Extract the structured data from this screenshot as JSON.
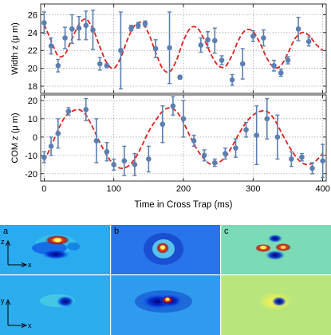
{
  "chart_data": [
    {
      "type": "scatter",
      "ylabel": "Width z (μ m)",
      "xlim": [
        -5,
        405
      ],
      "ylim": [
        17.2,
        27.2
      ],
      "yticks": [
        18,
        20,
        22,
        24,
        26
      ],
      "xticks": [
        0,
        100,
        200,
        300,
        400
      ],
      "grid": true,
      "series": [
        {
          "kind": "points",
          "color": "#5b7fb1",
          "points": [
            {
              "x": 0,
              "y": 25.1,
              "err": 1.2
            },
            {
              "x": 10,
              "y": 22.5,
              "err": 0.9
            },
            {
              "x": 20,
              "y": 20.3,
              "err": 0.7
            },
            {
              "x": 30,
              "y": 23.4,
              "err": 1.2
            },
            {
              "x": 40,
              "y": 24.4,
              "err": 1.6
            },
            {
              "x": 50,
              "y": 24.5,
              "err": 1.3
            },
            {
              "x": 60,
              "y": 24.8,
              "err": 1.6
            },
            {
              "x": 70,
              "y": 24.3,
              "err": 2.2
            },
            {
              "x": 80,
              "y": 20.5,
              "err": 0.7
            },
            {
              "x": 90,
              "y": 20.3,
              "err": 0.2
            },
            {
              "x": 110,
              "y": 22.0,
              "err": 4.3
            },
            {
              "x": 125,
              "y": 24.5,
              "err": 0.3
            },
            {
              "x": 135,
              "y": 24.8,
              "err": 0.3
            },
            {
              "x": 145,
              "y": 25.0,
              "err": 0.3
            },
            {
              "x": 160,
              "y": 22.2,
              "err": 1.0
            },
            {
              "x": 180,
              "y": 22.3,
              "err": 4.0
            },
            {
              "x": 195,
              "y": 19.0,
              "err": 0.2
            },
            {
              "x": 225,
              "y": 22.6,
              "err": 0.8
            },
            {
              "x": 235,
              "y": 23.2,
              "err": 0.9
            },
            {
              "x": 245,
              "y": 23.1,
              "err": 1.4
            },
            {
              "x": 255,
              "y": 20.9,
              "err": 0.5
            },
            {
              "x": 270,
              "y": 18.7,
              "err": 0.6
            },
            {
              "x": 285,
              "y": 20.5,
              "err": 1.7
            },
            {
              "x": 300,
              "y": 23.6,
              "err": 0.6
            },
            {
              "x": 315,
              "y": 23.4,
              "err": 0.9
            },
            {
              "x": 330,
              "y": 20.3,
              "err": 0.6
            },
            {
              "x": 340,
              "y": 19.5,
              "err": 0.4
            },
            {
              "x": 350,
              "y": 20.9,
              "err": 0.4
            },
            {
              "x": 365,
              "y": 24.4,
              "err": 1.3
            },
            {
              "x": 380,
              "y": 23.0,
              "err": 0.5
            }
          ]
        },
        {
          "kind": "fit",
          "color": "#e0201b",
          "dashed": true,
          "x": [
            0,
            10,
            20,
            30,
            40,
            50,
            60,
            70,
            80,
            90,
            100,
            110,
            120,
            130,
            140,
            150,
            160,
            170,
            180,
            190,
            200,
            210,
            220,
            230,
            240,
            250,
            260,
            270,
            280,
            290,
            300,
            310,
            320,
            330,
            340,
            350,
            360,
            370,
            380,
            390,
            400
          ],
          "y": [
            24.9,
            23.1,
            21.4,
            21.6,
            23.3,
            24.9,
            25.5,
            24.4,
            22.4,
            20.6,
            20.0,
            21.2,
            23.3,
            24.8,
            25.1,
            23.9,
            21.8,
            20.0,
            19.6,
            20.9,
            23.1,
            24.5,
            24.5,
            23.2,
            21.5,
            20.3,
            20.2,
            21.5,
            23.3,
            24.3,
            24.1,
            22.8,
            21.1,
            20.1,
            20.3,
            21.7,
            23.3,
            24.0,
            23.7,
            22.7,
            22.0
          ]
        }
      ]
    },
    {
      "type": "scatter",
      "ylabel": "COM z (μ m)",
      "xlabel": "Time in Cross Trap (ms)",
      "xlim": [
        -5,
        405
      ],
      "ylim": [
        -24,
        23
      ],
      "yticks": [
        -20,
        -10,
        0,
        10,
        20
      ],
      "xticks": [
        0,
        100,
        200,
        300,
        400
      ],
      "grid": true,
      "series": [
        {
          "kind": "points",
          "color": "#5b7fb1",
          "points": [
            {
              "x": 0,
              "y": -11,
              "err": 3
            },
            {
              "x": 10,
              "y": -5,
              "err": 5
            },
            {
              "x": 20,
              "y": 2,
              "err": 8
            },
            {
              "x": 35,
              "y": 14,
              "err": 2
            },
            {
              "x": 60,
              "y": 15,
              "err": 6
            },
            {
              "x": 75,
              "y": -2,
              "err": 12
            },
            {
              "x": 90,
              "y": -8,
              "err": 5
            },
            {
              "x": 100,
              "y": -15,
              "err": 3
            },
            {
              "x": 115,
              "y": -13,
              "err": 8
            },
            {
              "x": 130,
              "y": -15,
              "err": 6
            },
            {
              "x": 150,
              "y": -12,
              "err": 7
            },
            {
              "x": 170,
              "y": 7,
              "err": 10
            },
            {
              "x": 185,
              "y": 17,
              "err": 5
            },
            {
              "x": 200,
              "y": 10,
              "err": 10
            },
            {
              "x": 215,
              "y": -2,
              "err": 3
            },
            {
              "x": 230,
              "y": -10,
              "err": 3
            },
            {
              "x": 245,
              "y": -14,
              "err": 2
            },
            {
              "x": 260,
              "y": -9,
              "err": 3
            },
            {
              "x": 275,
              "y": -6,
              "err": 5
            },
            {
              "x": 290,
              "y": 4,
              "err": 4
            },
            {
              "x": 305,
              "y": 1,
              "err": 16
            },
            {
              "x": 320,
              "y": 10,
              "err": 11
            },
            {
              "x": 335,
              "y": 0,
              "err": 12
            },
            {
              "x": 355,
              "y": -12,
              "err": 4
            },
            {
              "x": 370,
              "y": -11,
              "err": 2
            },
            {
              "x": 385,
              "y": -17,
              "err": 3
            },
            {
              "x": 400,
              "y": -13,
              "err": 9
            }
          ]
        },
        {
          "kind": "fit",
          "color": "#e0201b",
          "dashed": true,
          "x": [
            0,
            10,
            20,
            30,
            40,
            50,
            60,
            70,
            80,
            90,
            100,
            110,
            120,
            130,
            140,
            150,
            160,
            170,
            180,
            190,
            200,
            210,
            220,
            230,
            240,
            250,
            260,
            270,
            280,
            290,
            300,
            310,
            320,
            330,
            340,
            350,
            360,
            370,
            380,
            390,
            400
          ],
          "y": [
            -13,
            -5,
            4,
            11,
            14,
            15,
            12,
            5,
            -3,
            -10,
            -15,
            -17,
            -16,
            -12,
            -5,
            3,
            9,
            14,
            16,
            14,
            8,
            0,
            -7,
            -12,
            -15,
            -14,
            -11,
            -5,
            2,
            8,
            12,
            14,
            14,
            10,
            3,
            -4,
            -10,
            -14,
            -15,
            -13,
            -9
          ]
        }
      ]
    }
  ],
  "image_panels": [
    {
      "label": "a",
      "top_axes": {
        "vertical": "z",
        "horizontal": "x"
      },
      "bottom_axes": {
        "vertical": "y",
        "horizontal": "x"
      }
    },
    {
      "label": "b"
    },
    {
      "label": "c"
    }
  ]
}
